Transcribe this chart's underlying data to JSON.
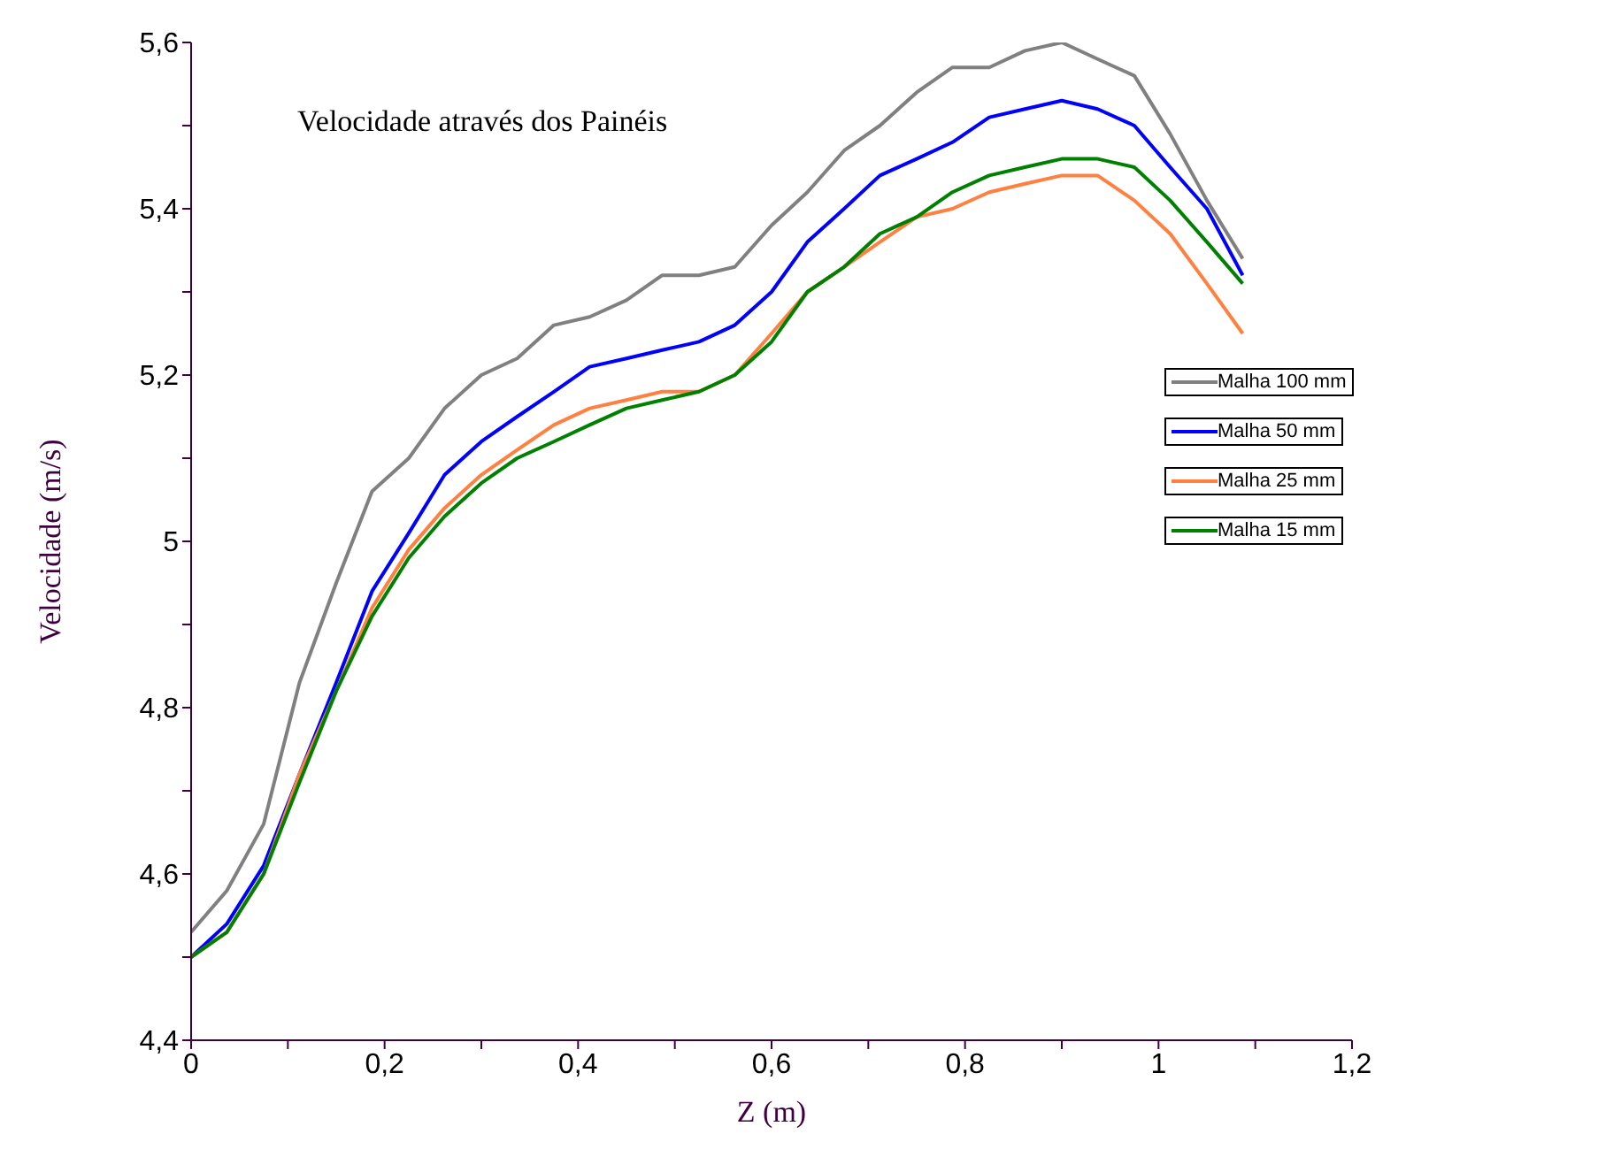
{
  "chart_data": {
    "type": "line",
    "title": "Velocidade através dos Painéis",
    "xlabel": "Z (m)",
    "ylabel": "Velocidade (m/s)",
    "x": [
      0,
      0.037,
      0.075,
      0.112,
      0.15,
      0.187,
      0.225,
      0.262,
      0.3,
      0.337,
      0.375,
      0.412,
      0.45,
      0.487,
      0.525,
      0.562,
      0.6,
      0.637,
      0.675,
      0.712,
      0.75,
      0.787,
      0.825,
      0.862,
      0.9,
      0.937,
      0.975,
      1.012,
      1.05,
      1.087
    ],
    "series": [
      {
        "name": "Malha 100 mm",
        "color": "#808080",
        "values": [
          4.53,
          4.58,
          4.66,
          4.83,
          4.95,
          5.06,
          5.1,
          5.16,
          5.2,
          5.22,
          5.26,
          5.27,
          5.29,
          5.32,
          5.32,
          5.33,
          5.38,
          5.42,
          5.47,
          5.5,
          5.54,
          5.57,
          5.57,
          5.59,
          5.6,
          5.58,
          5.56,
          5.49,
          5.41,
          5.34
        ]
      },
      {
        "name": "Malha 50 mm",
        "color": "#0000ff",
        "values": [
          4.5,
          4.54,
          4.61,
          4.72,
          4.83,
          4.94,
          5.01,
          5.08,
          5.12,
          5.15,
          5.18,
          5.21,
          5.22,
          5.23,
          5.24,
          5.26,
          5.3,
          5.36,
          5.4,
          5.44,
          5.46,
          5.48,
          5.51,
          5.52,
          5.53,
          5.52,
          5.5,
          5.45,
          5.4,
          5.32
        ]
      },
      {
        "name": "Malha 25 mm",
        "color": "#ff8040",
        "values": [
          4.5,
          4.53,
          4.6,
          4.72,
          4.82,
          4.92,
          4.99,
          5.04,
          5.08,
          5.11,
          5.14,
          5.16,
          5.17,
          5.18,
          5.18,
          5.2,
          5.25,
          5.3,
          5.33,
          5.36,
          5.39,
          5.4,
          5.42,
          5.43,
          5.44,
          5.44,
          5.41,
          5.37,
          5.31,
          5.25
        ]
      },
      {
        "name": "Malha 15 mm",
        "color": "#008000",
        "values": [
          4.5,
          4.53,
          4.6,
          4.71,
          4.82,
          4.91,
          4.98,
          5.03,
          5.07,
          5.1,
          5.12,
          5.14,
          5.16,
          5.17,
          5.18,
          5.2,
          5.24,
          5.3,
          5.33,
          5.37,
          5.39,
          5.42,
          5.44,
          5.45,
          5.46,
          5.46,
          5.45,
          5.41,
          5.36,
          5.31
        ]
      }
    ],
    "xlim": [
      0,
      1.2
    ],
    "xticks": [
      0,
      {
        "value": 0.1,
        "label": null
      },
      {
        "value": 0.2,
        "label": "0,2"
      },
      {
        "value": 0.3,
        "label": null
      },
      {
        "value": 0.4,
        "label": "0,4"
      },
      {
        "value": 0.5,
        "label": null
      },
      {
        "value": 0.6,
        "label": "0,6"
      },
      {
        "value": 0.7,
        "label": null
      },
      {
        "value": 0.8,
        "label": "0,8"
      },
      {
        "value": 0.9,
        "label": null
      },
      1,
      {
        "value": 1.1,
        "label": null
      },
      {
        "value": 1.2,
        "label": "1,2"
      }
    ],
    "ylim": [
      4.4,
      5.6
    ],
    "yticks": [
      {
        "value": 4.4,
        "label": "4,4"
      },
      {
        "value": 4.5,
        "label": null
      },
      {
        "value": 4.6,
        "label": "4,6"
      },
      {
        "value": 4.7,
        "label": null
      },
      {
        "value": 4.8,
        "label": "4,8"
      },
      {
        "value": 4.9,
        "label": null
      },
      5,
      {
        "value": 5.1,
        "label": null
      },
      {
        "value": 5.2,
        "label": "5,2"
      },
      {
        "value": 5.3,
        "label": null
      },
      {
        "value": 5.4,
        "label": "5,4"
      },
      {
        "value": 5.5,
        "label": null
      },
      {
        "value": 5.6,
        "label": "5,6"
      }
    ],
    "legend": "right",
    "grid": false,
    "marker": "none",
    "line_style": "solid"
  }
}
